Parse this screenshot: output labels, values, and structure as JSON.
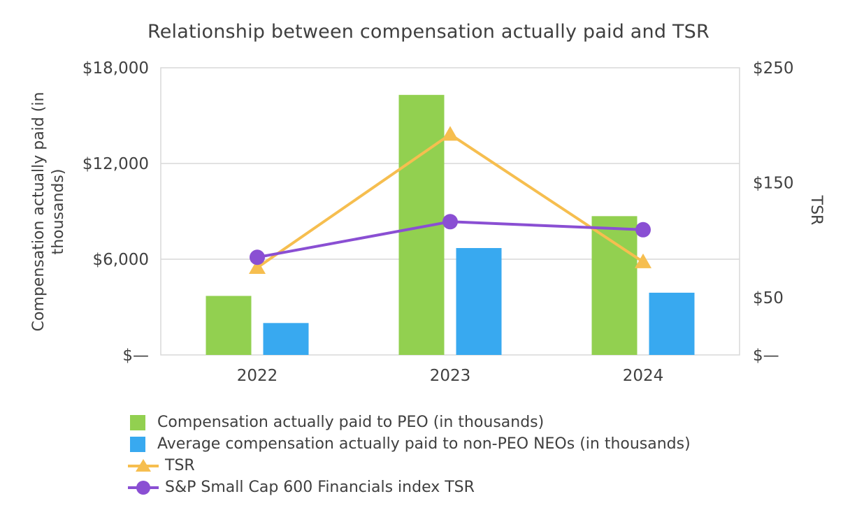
{
  "chart_data": {
    "type": "combo-bar-line",
    "title": "Relationship between compensation actually paid and TSR",
    "categories": [
      "2022",
      "2023",
      "2024"
    ],
    "bar_series": [
      {
        "name": "Compensation actually paid to PEO (in thousands)",
        "color": "#92D050",
        "axis": "left",
        "values": [
          3700,
          16300,
          8700
        ]
      },
      {
        "name": "Average compensation actually paid to non-PEO NEOs (in thousands)",
        "color": "#38A9F0",
        "axis": "left",
        "values": [
          2000,
          6700,
          3900
        ]
      }
    ],
    "line_series": [
      {
        "name": "TSR",
        "color": "#F6BE4F",
        "marker": "triangle",
        "axis": "right",
        "values": [
          76,
          192,
          81
        ]
      },
      {
        "name": "S&P Small Cap 600 Financials index TSR",
        "color": "#8A4FD3",
        "marker": "circle",
        "axis": "right",
        "values": [
          85,
          116,
          109
        ]
      }
    ],
    "left_axis": {
      "title": "Compensation actually paid (in thousands)",
      "min": 0,
      "max": 18000,
      "ticks": [
        {
          "value": 18000,
          "label": "$18,000"
        },
        {
          "value": 12000,
          "label": "$12,000"
        },
        {
          "value": 6000,
          "label": "$6,000"
        },
        {
          "value": 0,
          "label": "$—"
        }
      ]
    },
    "right_axis": {
      "title": "TSR",
      "min": 0,
      "max": 250,
      "ticks": [
        {
          "value": 250,
          "label": "$250"
        },
        {
          "value": 150,
          "label": "$150"
        },
        {
          "value": 50,
          "label": "$50"
        },
        {
          "value": 0,
          "label": "$—"
        }
      ]
    },
    "grid": "horizontal",
    "legend_position": "bottom-left"
  }
}
